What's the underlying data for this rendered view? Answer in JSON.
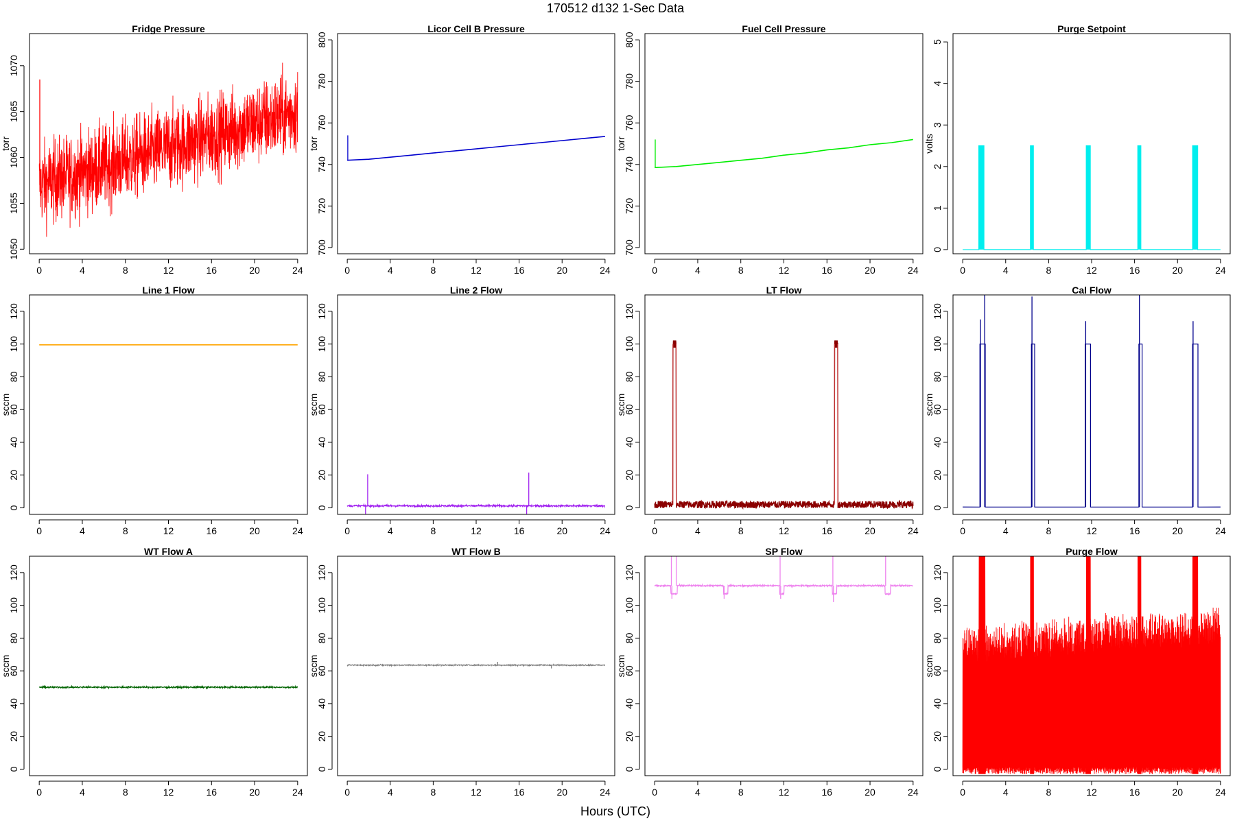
{
  "title": "170512   d132   1-Sec Data",
  "xlabel": "Hours (UTC)",
  "chart_data": [
    {
      "type": "line",
      "title": "Fridge Pressure",
      "ylabel": "torr",
      "color": "#FF0000",
      "xlim": [
        0,
        24
      ],
      "xticks": [
        0,
        4,
        8,
        12,
        16,
        20,
        24
      ],
      "ylim": [
        1049.5,
        1073.5
      ],
      "yticks": [
        1050,
        1055,
        1060,
        1065,
        1070
      ],
      "series": [
        {
          "kind": "noise",
          "x": [
            0,
            24
          ],
          "y": [
            1057,
            1065
          ],
          "spread": [
            3.5,
            3.5
          ],
          "spikes": [
            [
              0.05,
              1068.5
            ]
          ]
        }
      ]
    },
    {
      "type": "line",
      "title": "Licor Cell B Pressure",
      "ylabel": "torr",
      "color": "#0000CD",
      "xlim": [
        0,
        24
      ],
      "xticks": [
        0,
        4,
        8,
        12,
        16,
        20,
        24
      ],
      "ylim": [
        697,
        803
      ],
      "yticks": [
        700,
        720,
        740,
        760,
        780,
        800
      ],
      "series": [
        {
          "kind": "line",
          "x": [
            0,
            2,
            4,
            6,
            8,
            10,
            12,
            14,
            16,
            18,
            20,
            22,
            24
          ],
          "y": [
            742,
            742.5,
            743.5,
            744.5,
            745.5,
            746.5,
            747.5,
            748.5,
            749.5,
            750.5,
            751.5,
            752.5,
            753.5
          ],
          "spikes": [
            [
              0.05,
              754
            ]
          ]
        }
      ]
    },
    {
      "type": "line",
      "title": "Fuel Cell Pressure",
      "ylabel": "torr",
      "color": "#00EE00",
      "xlim": [
        0,
        24
      ],
      "xticks": [
        0,
        4,
        8,
        12,
        16,
        20,
        24
      ],
      "ylim": [
        697,
        803
      ],
      "yticks": [
        700,
        720,
        740,
        760,
        780,
        800
      ],
      "series": [
        {
          "kind": "line",
          "x": [
            0,
            2,
            4,
            6,
            8,
            10,
            12,
            14,
            16,
            18,
            20,
            22,
            24
          ],
          "y": [
            738.5,
            739,
            740,
            741,
            742,
            743,
            744.5,
            745.5,
            747,
            748,
            749.5,
            750.5,
            752
          ],
          "spikes": [
            [
              0.05,
              752
            ]
          ]
        }
      ]
    },
    {
      "type": "line",
      "title": "Purge Setpoint",
      "ylabel": "volts",
      "color": "#00EEEE",
      "xlim": [
        0,
        24
      ],
      "xticks": [
        0,
        4,
        8,
        12,
        16,
        20,
        24
      ],
      "ylim": [
        -0.1,
        5.2
      ],
      "yticks": [
        0,
        1,
        2,
        3,
        4,
        5
      ],
      "series": [
        {
          "kind": "pulse",
          "base": 0,
          "level": 2.5,
          "pulses": [
            [
              1.5,
              2.0
            ],
            [
              6.3,
              6.6
            ],
            [
              11.5,
              11.9
            ],
            [
              16.3,
              16.6
            ],
            [
              21.4,
              21.9
            ]
          ],
          "style": "comb"
        }
      ]
    },
    {
      "type": "line",
      "title": "Line 1 Flow",
      "ylabel": "sccm",
      "color": "#FFA500",
      "xlim": [
        0,
        24
      ],
      "xticks": [
        0,
        4,
        8,
        12,
        16,
        20,
        24
      ],
      "ylim": [
        -4,
        130
      ],
      "yticks": [
        0,
        20,
        40,
        60,
        80,
        100,
        120
      ],
      "series": [
        {
          "kind": "line",
          "x": [
            0,
            24
          ],
          "y": [
            99.5,
            99.5
          ]
        }
      ]
    },
    {
      "type": "line",
      "title": "Line 2 Flow",
      "ylabel": "sccm",
      "color": "#A020F0",
      "xlim": [
        0,
        24
      ],
      "xticks": [
        0,
        4,
        8,
        12,
        16,
        20,
        24
      ],
      "ylim": [
        -4,
        130
      ],
      "yticks": [
        0,
        20,
        40,
        60,
        80,
        100,
        120
      ],
      "series": [
        {
          "kind": "band",
          "base": 1.2,
          "spread": 1.0,
          "spikes": [
            [
              1.9,
              20.5
            ],
            [
              1.7,
              -4
            ],
            [
              16.9,
              21.5
            ],
            [
              16.7,
              -4
            ]
          ]
        }
      ]
    },
    {
      "type": "line",
      "title": "LT Flow",
      "ylabel": "sccm",
      "color": "#8B0000",
      "xlim": [
        0,
        24
      ],
      "xticks": [
        0,
        4,
        8,
        12,
        16,
        20,
        24
      ],
      "ylim": [
        -4,
        130
      ],
      "yticks": [
        0,
        20,
        40,
        60,
        80,
        100,
        120
      ],
      "series": [
        {
          "kind": "pulse",
          "base": 2,
          "baseSpread": 2.2,
          "level": 100,
          "levelSpread": 2.2,
          "pulses": [
            [
              1.7,
              2.0
            ],
            [
              16.7,
              17.0
            ]
          ],
          "style": "box"
        }
      ]
    },
    {
      "type": "line",
      "title": "Cal Flow",
      "ylabel": "sccm",
      "color": "#00008B",
      "xlim": [
        0,
        24
      ],
      "xticks": [
        0,
        4,
        8,
        12,
        16,
        20,
        24
      ],
      "ylim": [
        -4,
        130
      ],
      "yticks": [
        0,
        20,
        40,
        60,
        80,
        100,
        120
      ],
      "series": [
        {
          "kind": "pulse",
          "base": 0.5,
          "level": 100,
          "pulses": [
            [
              1.6,
              2.1
            ],
            [
              6.4,
              6.7
            ],
            [
              11.4,
              11.9
            ],
            [
              16.4,
              16.7
            ],
            [
              21.4,
              21.9
            ]
          ],
          "style": "step",
          "spikes": [
            [
              1.65,
              115
            ],
            [
              2.05,
              130
            ],
            [
              6.45,
              129
            ],
            [
              11.45,
              114
            ],
            [
              16.45,
              130
            ],
            [
              21.45,
              114
            ]
          ]
        }
      ]
    },
    {
      "type": "line",
      "title": "WT Flow A",
      "ylabel": "sccm",
      "color": "#006400",
      "xlim": [
        0,
        24
      ],
      "xticks": [
        0,
        4,
        8,
        12,
        16,
        20,
        24
      ],
      "ylim": [
        -4,
        130
      ],
      "yticks": [
        0,
        20,
        40,
        60,
        80,
        100,
        120
      ],
      "series": [
        {
          "kind": "band",
          "base": 50,
          "spread": 0.8
        }
      ]
    },
    {
      "type": "line",
      "title": "WT Flow B",
      "ylabel": "sccm",
      "color": "#808080",
      "xlim": [
        0,
        24
      ],
      "xticks": [
        0,
        4,
        8,
        12,
        16,
        20,
        24
      ],
      "ylim": [
        -4,
        130
      ],
      "yticks": [
        0,
        20,
        40,
        60,
        80,
        100,
        120
      ],
      "series": [
        {
          "kind": "band",
          "base": 63.5,
          "spread": 0.6,
          "spikes": [
            [
              14,
              65.5
            ],
            [
              19,
              61.5
            ]
          ]
        }
      ]
    },
    {
      "type": "line",
      "title": "SP Flow",
      "ylabel": "sccm",
      "color": "#EE82EE",
      "xlim": [
        0,
        24
      ],
      "xticks": [
        0,
        4,
        8,
        12,
        16,
        20,
        24
      ],
      "ylim": [
        -4,
        130
      ],
      "yticks": [
        0,
        20,
        40,
        60,
        80,
        100,
        120
      ],
      "series": [
        {
          "kind": "dips",
          "base": 112,
          "spread": 0.8,
          "low": 107,
          "dips": [
            [
              1.5,
              2.1
            ],
            [
              6.4,
              6.8
            ],
            [
              11.6,
              12.0
            ],
            [
              16.5,
              16.9
            ],
            [
              21.4,
              21.9
            ]
          ],
          "spikes": [
            [
              1.55,
              130
            ],
            [
              1.6,
              104
            ],
            [
              2.0,
              130
            ],
            [
              6.45,
              104
            ],
            [
              11.65,
              130
            ],
            [
              11.7,
              104
            ],
            [
              16.55,
              130
            ],
            [
              16.6,
              102
            ],
            [
              21.45,
              130
            ]
          ]
        }
      ]
    },
    {
      "type": "line",
      "title": "Purge Flow",
      "ylabel": "sccm",
      "color": "#FF0000",
      "xlim": [
        0,
        24
      ],
      "xticks": [
        0,
        4,
        8,
        12,
        16,
        20,
        24
      ],
      "ylim": [
        -4,
        130
      ],
      "yticks": [
        0,
        20,
        40,
        60,
        80,
        100,
        120
      ],
      "series": [
        {
          "kind": "dense",
          "low": -3,
          "high": [
            86,
            98
          ],
          "bursts": [
            [
              1.5,
              2.1
            ],
            [
              6.3,
              6.6
            ],
            [
              11.5,
              11.9
            ],
            [
              16.3,
              16.6
            ],
            [
              21.4,
              21.9
            ]
          ]
        }
      ]
    }
  ]
}
